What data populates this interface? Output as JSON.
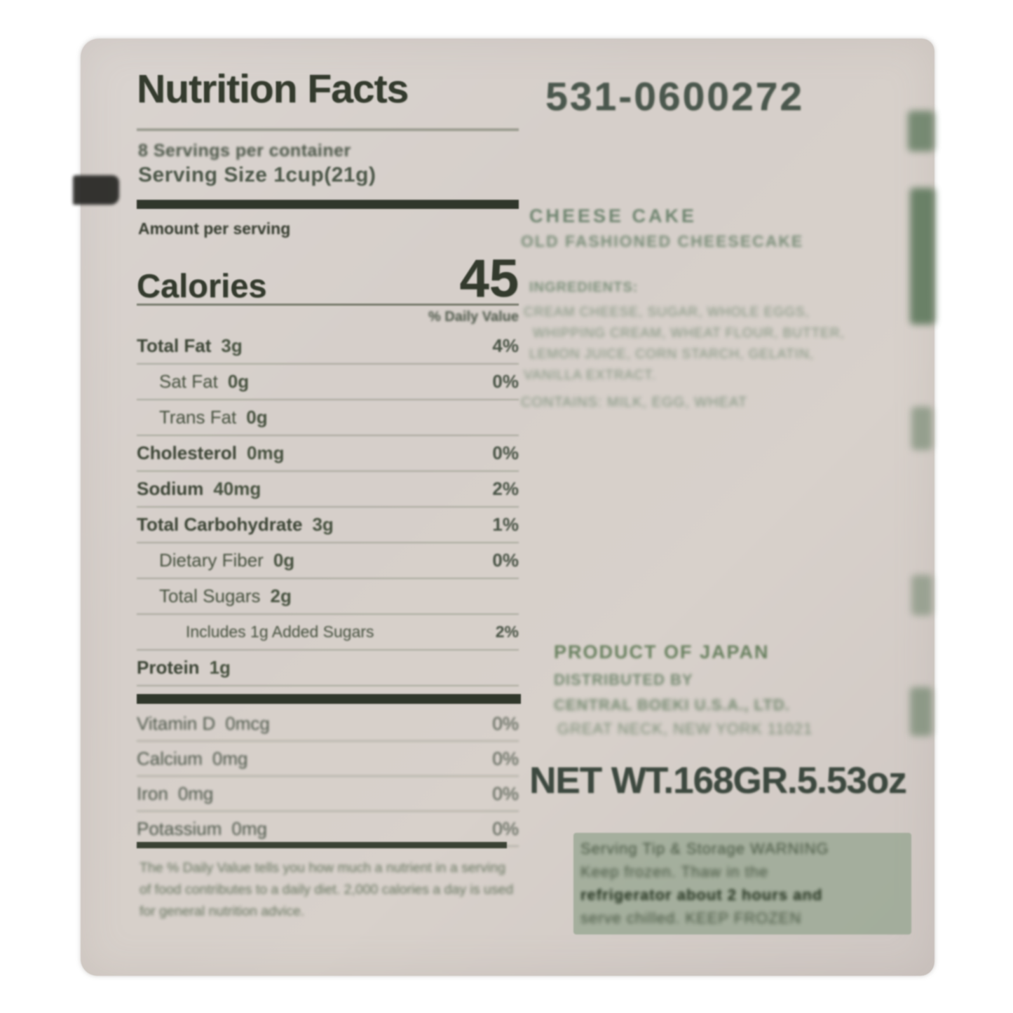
{
  "label": {
    "code": "531-0600272",
    "title": "Nutrition Facts",
    "servings_per_container": "8 Servings per container",
    "serving_size": "Serving Size 1cup(21g)",
    "amount_per_serving": "Amount per serving",
    "calories_label": "Calories",
    "calories_value": "45",
    "daily_value_header": "% Daily Value",
    "rows": [
      {
        "name": "Total Fat",
        "amount": "3g",
        "dv": "4%"
      },
      {
        "name": "Sat Fat",
        "amount": "0g",
        "dv": "0%"
      },
      {
        "name": "Trans Fat",
        "amount": "0g",
        "dv": ""
      },
      {
        "name": "Cholesterol",
        "amount": "0mg",
        "dv": "0%"
      },
      {
        "name": "Sodium",
        "amount": "40mg",
        "dv": "2%"
      },
      {
        "name": "Total Carbohydrate",
        "amount": "3g",
        "dv": "1%"
      },
      {
        "name": "Dietary Fiber",
        "amount": "0g",
        "dv": "0%"
      },
      {
        "name": "Total Sugars",
        "amount": "2g",
        "dv": ""
      },
      {
        "name": "Includes 1g Added Sugars",
        "amount": "",
        "dv": "2%"
      },
      {
        "name": "Protein",
        "amount": "1g",
        "dv": ""
      }
    ],
    "vitamins": [
      {
        "name": "Vitamin D",
        "amount": "0mcg",
        "dv": "0%"
      },
      {
        "name": "Calcium",
        "amount": "0mg",
        "dv": "0%"
      },
      {
        "name": "Iron",
        "amount": "0mg",
        "dv": "0%"
      },
      {
        "name": "Potassium",
        "amount": "0mg",
        "dv": "0%"
      }
    ],
    "footnote": "The % Daily Value tells you how much a nutrient in a serving of food contributes to a daily diet. 2,000 calories a day is used for general nutrition advice.",
    "right": {
      "product_name": "CHEESE CAKE",
      "product_subtitle": "OLD FASHIONED CHEESECAKE",
      "ingredients_title": "INGREDIENTS:",
      "ingredients_lines": [
        "CREAM CHEESE, SUGAR, WHOLE EGGS,",
        "WHIPPING CREAM, WHEAT FLOUR, BUTTER,",
        "LEMON JUICE, CORN STARCH, GELATIN,",
        "VANILLA EXTRACT."
      ],
      "contains_line": "CONTAINS: MILK, EGG, WHEAT",
      "origin": "PRODUCT OF JAPAN",
      "distributed_by": "DISTRIBUTED BY",
      "distributor_name": "CENTRAL BOEKI U.S.A., LTD.",
      "distributor_address": "GREAT NECK, NEW YORK 11021",
      "net_weight": "NET WT.168GR.5.53oz",
      "warning_lines": [
        "Serving Tip & Storage WARNING",
        "Keep frozen. Thaw in the",
        "refrigerator about 2 hours and",
        "serve chilled. KEEP FROZEN"
      ]
    },
    "colors": {
      "paper": "#d6cfca",
      "dark_ink": "#343b2e",
      "faded_green_ink": "#7b8f7a",
      "warning_box": "#94a48f"
    }
  }
}
